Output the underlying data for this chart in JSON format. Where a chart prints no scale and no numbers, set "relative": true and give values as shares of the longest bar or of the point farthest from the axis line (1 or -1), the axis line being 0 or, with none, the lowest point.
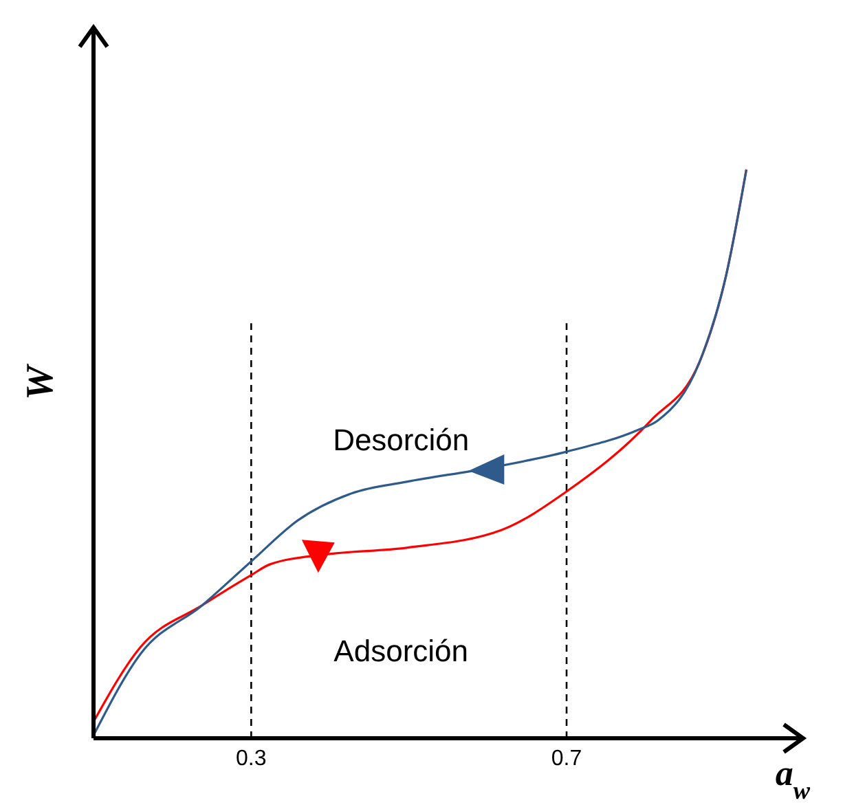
{
  "chart_data": {
    "type": "line",
    "relative": true,
    "xlabel": "a$_{w}$",
    "ylabel": "W",
    "xlim": [
      0.1,
      1.0
    ],
    "xticks": [
      0.3,
      0.7
    ],
    "tick_labels": "x",
    "legend": false,
    "grid": false,
    "marker": "none",
    "line_style": "solid",
    "series": [
      {
        "color": "#ff0000",
        "x": [
          0.1,
          0.16,
          0.238,
          0.3,
          0.324,
          0.393,
          0.497,
          0.617,
          0.7,
          0.807,
          0.869,
          0.902,
          0.928
        ],
        "values": [
          0.029,
          0.161,
          0.234,
          0.287,
          0.306,
          0.323,
          0.335,
          0.366,
          0.434,
          0.559,
          0.663,
          0.812,
          1
        ]
      },
      {
        "color": "#2e5a8c",
        "x": [
          0.1,
          0.16,
          0.238,
          0.3,
          0.359,
          0.428,
          0.497,
          0.6,
          0.7,
          0.79,
          0.816,
          0.869,
          0.902,
          0.928
        ],
        "values": [
          0.005,
          0.149,
          0.234,
          0.311,
          0.383,
          0.431,
          0.451,
          0.475,
          0.504,
          0.542,
          0.559,
          0.663,
          0.812,
          1
        ]
      }
    ],
    "ref_lines": [
      {
        "axis": "x",
        "value": 0.3,
        "line_style": "dashed",
        "color": "#000000"
      },
      {
        "axis": "x",
        "value": 0.7,
        "line_style": "dashed",
        "color": "#000000"
      }
    ],
    "annotations": [
      "Desorción",
      "Adsorción"
    ]
  }
}
